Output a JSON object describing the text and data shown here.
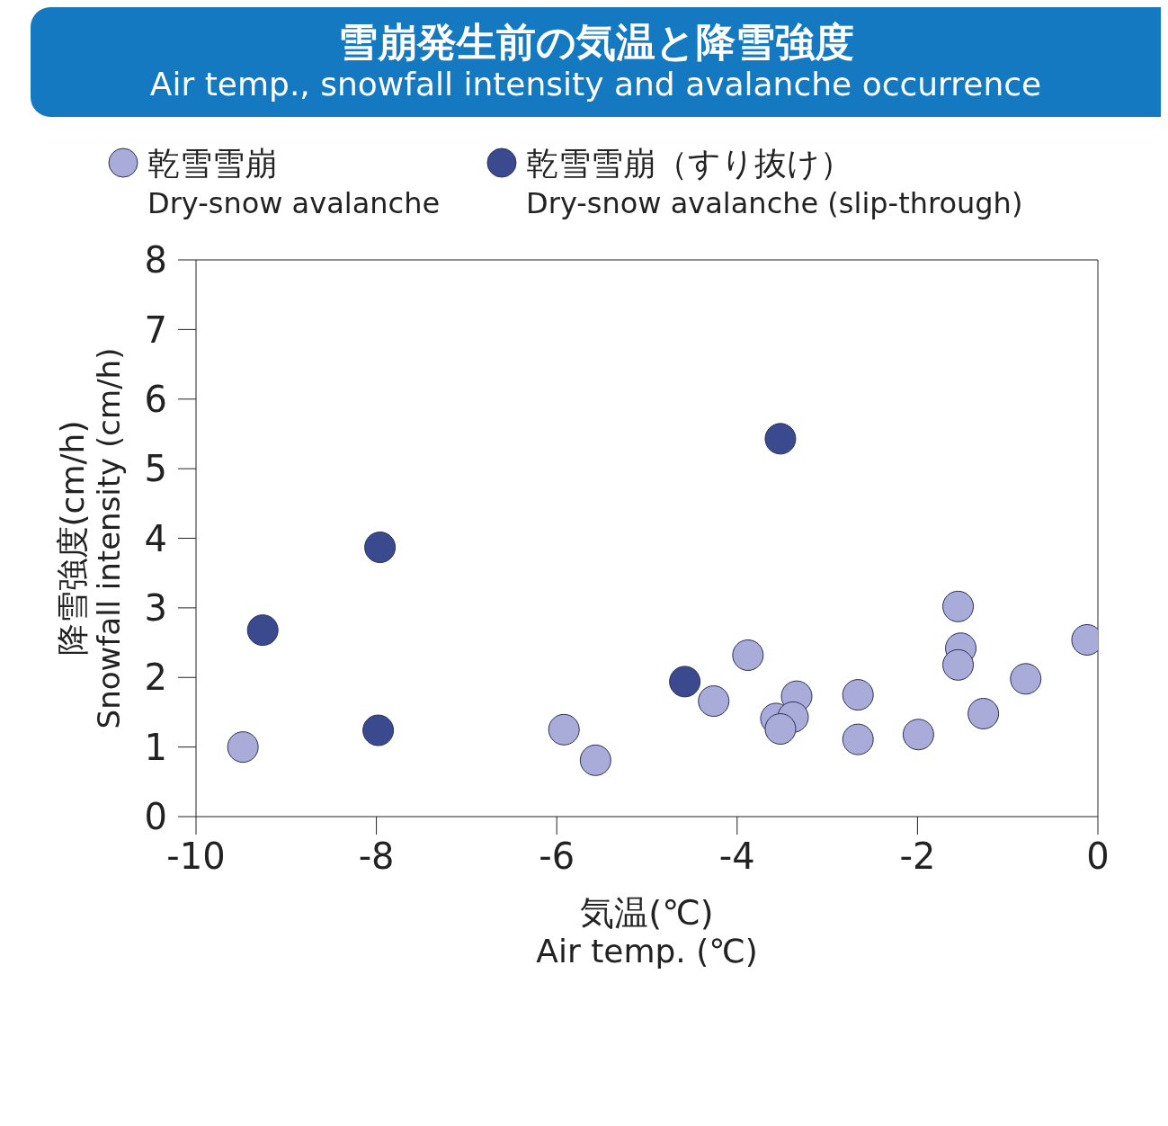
{
  "chart_data": {
    "type": "scatter",
    "title": "雪崩発生前の気温と降雪強度",
    "subtitle": "Air temp., snowfall intensity and avalanche occurrence",
    "xlabel": "気温(℃)\nAir temp. (℃)",
    "ylabel": "降雪強度(cm/h)\nSnowfall intensity (cm/h)",
    "xlim": [
      -10,
      0
    ],
    "xticks": [
      -10,
      -8,
      -6,
      -4,
      -2,
      0
    ],
    "ylim": [
      0,
      8
    ],
    "yticks": [
      0,
      1,
      2,
      3,
      4,
      5,
      6,
      7,
      8
    ],
    "grid": false,
    "legend": "top",
    "marker": "circle",
    "series": [
      {
        "name": "乾雪雪崩\nDry-snow avalanche",
        "color": "#a9acd8",
        "x": [
          -9.48,
          -5.92,
          -5.57,
          -4.26,
          -3.88,
          -3.34,
          -3.57,
          -3.38,
          -3.52,
          -2.66,
          -2.66,
          -1.99,
          -1.55,
          -1.52,
          -1.55,
          -1.27,
          -0.8,
          -0.12
        ],
        "values": [
          1.0,
          1.25,
          0.81,
          1.66,
          2.32,
          1.73,
          1.41,
          1.43,
          1.26,
          1.75,
          1.11,
          1.18,
          3.02,
          2.42,
          2.18,
          1.48,
          1.98,
          2.54
        ]
      },
      {
        "name": "乾雪雪崩（すり抜け）\nDry-snow avalanche (slip-through)",
        "color": "#3b4a8f",
        "x": [
          -9.26,
          -7.96,
          -7.98,
          -4.58,
          -3.52
        ],
        "values": [
          2.68,
          3.87,
          1.24,
          1.94,
          5.43
        ]
      }
    ]
  }
}
